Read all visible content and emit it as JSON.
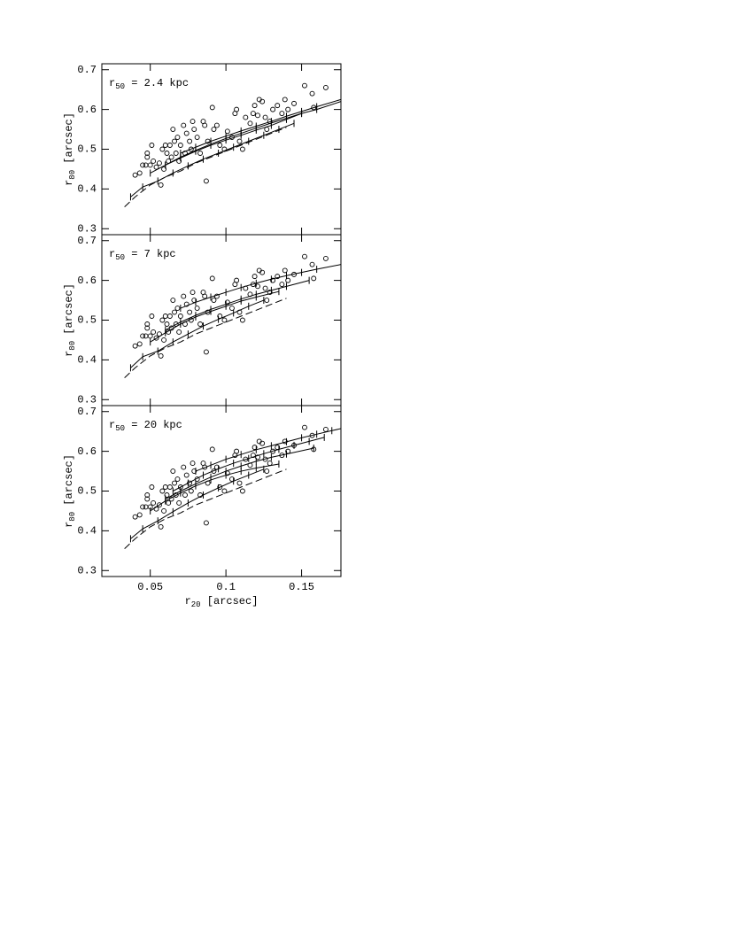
{
  "chart_data": [
    {
      "type": "scatter",
      "annotation": [
        "r",
        "50",
        " = 2.4 kpc"
      ],
      "y_label": [
        "r",
        "80",
        " [arcsec]"
      ],
      "xlim": [
        0.018,
        0.176
      ],
      "ylim": [
        0.285,
        0.715
      ],
      "xticks": [
        0.05,
        0.1,
        0.15
      ],
      "yticks": [
        0.3,
        0.4,
        0.5,
        0.6,
        0.7
      ],
      "show_xtick_labels": false,
      "series": [
        {
          "marker": "circle",
          "color": "#000000",
          "x": [
            0.04,
            0.043,
            0.045,
            0.047,
            0.048,
            0.048,
            0.05,
            0.051,
            0.052,
            0.054,
            0.056,
            0.057,
            0.058,
            0.059,
            0.06,
            0.061,
            0.062,
            0.063,
            0.064,
            0.065,
            0.066,
            0.067,
            0.068,
            0.069,
            0.07,
            0.072,
            0.073,
            0.074,
            0.076,
            0.077,
            0.078,
            0.079,
            0.081,
            0.083,
            0.085,
            0.086,
            0.087,
            0.088,
            0.091,
            0.092,
            0.094,
            0.096,
            0.099,
            0.101,
            0.104,
            0.106,
            0.107,
            0.109,
            0.111,
            0.113,
            0.116,
            0.118,
            0.119,
            0.121,
            0.122,
            0.124,
            0.126,
            0.127,
            0.129,
            0.131,
            0.134,
            0.137,
            0.139,
            0.141,
            0.145,
            0.152,
            0.157,
            0.158,
            0.166
          ],
          "values": [
            0.435,
            0.44,
            0.46,
            0.46,
            0.48,
            0.49,
            0.46,
            0.51,
            0.47,
            0.455,
            0.465,
            0.41,
            0.5,
            0.45,
            0.51,
            0.49,
            0.47,
            0.51,
            0.48,
            0.55,
            0.52,
            0.49,
            0.53,
            0.47,
            0.51,
            0.56,
            0.49,
            0.54,
            0.52,
            0.5,
            0.57,
            0.55,
            0.53,
            0.49,
            0.57,
            0.56,
            0.42,
            0.52,
            0.605,
            0.55,
            0.56,
            0.51,
            0.5,
            0.545,
            0.53,
            0.59,
            0.6,
            0.52,
            0.5,
            0.58,
            0.565,
            0.59,
            0.61,
            0.585,
            0.625,
            0.62,
            0.58,
            0.55,
            0.57,
            0.6,
            0.61,
            0.59,
            0.625,
            0.6,
            0.615,
            0.66,
            0.64,
            0.605,
            0.655
          ]
        },
        {
          "line": "dashed",
          "color": "#000000",
          "x": [
            0.033,
            0.04,
            0.05,
            0.06,
            0.07,
            0.08,
            0.09,
            0.1,
            0.11,
            0.12,
            0.13,
            0.14
          ],
          "values": [
            0.355,
            0.38,
            0.41,
            0.43,
            0.445,
            0.465,
            0.48,
            0.495,
            0.51,
            0.525,
            0.54,
            0.555
          ]
        },
        {
          "line": "solid",
          "color": "#000000",
          "x": [
            0.037,
            0.045,
            0.055,
            0.065,
            0.075,
            0.085,
            0.095,
            0.105,
            0.115,
            0.125,
            0.135,
            0.145
          ],
          "values": [
            0.38,
            0.405,
            0.42,
            0.44,
            0.458,
            0.475,
            0.49,
            0.505,
            0.52,
            0.535,
            0.55,
            0.565
          ]
        },
        {
          "line": "solid",
          "color": "#000000",
          "x": [
            0.05,
            0.06,
            0.07,
            0.08,
            0.09,
            0.1,
            0.11,
            0.12,
            0.13,
            0.14,
            0.15
          ],
          "values": [
            0.44,
            0.46,
            0.478,
            0.495,
            0.51,
            0.523,
            0.535,
            0.548,
            0.56,
            0.575,
            0.59
          ]
        },
        {
          "line": "solid",
          "color": "#000000",
          "x": [
            0.06,
            0.07,
            0.08,
            0.09,
            0.1,
            0.11,
            0.12,
            0.13,
            0.14,
            0.15,
            0.16,
            0.176
          ],
          "values": [
            0.46,
            0.48,
            0.497,
            0.513,
            0.527,
            0.54,
            0.553,
            0.566,
            0.578,
            0.59,
            0.6,
            0.62
          ]
        },
        {
          "line": "solid",
          "color": "#000000",
          "x": [
            0.07,
            0.08,
            0.09,
            0.1,
            0.11,
            0.12,
            0.13,
            0.14,
            0.15,
            0.16,
            0.176
          ],
          "values": [
            0.49,
            0.505,
            0.52,
            0.533,
            0.546,
            0.558,
            0.57,
            0.583,
            0.595,
            0.607,
            0.625
          ]
        }
      ]
    },
    {
      "type": "scatter",
      "annotation": [
        "r",
        "50",
        " = 7 kpc"
      ],
      "y_label": [
        "r",
        "80",
        " [arcsec]"
      ],
      "xlim": [
        0.018,
        0.176
      ],
      "ylim": [
        0.285,
        0.715
      ],
      "xticks": [
        0.05,
        0.1,
        0.15
      ],
      "yticks": [
        0.3,
        0.4,
        0.5,
        0.6,
        0.7
      ],
      "show_xtick_labels": false,
      "series": [
        {
          "marker": "circle",
          "color": "#000000",
          "x": [
            0.04,
            0.043,
            0.045,
            0.047,
            0.048,
            0.048,
            0.05,
            0.051,
            0.052,
            0.054,
            0.056,
            0.057,
            0.058,
            0.059,
            0.06,
            0.061,
            0.062,
            0.063,
            0.064,
            0.065,
            0.066,
            0.067,
            0.068,
            0.069,
            0.07,
            0.072,
            0.073,
            0.074,
            0.076,
            0.077,
            0.078,
            0.079,
            0.081,
            0.083,
            0.085,
            0.086,
            0.087,
            0.088,
            0.091,
            0.092,
            0.094,
            0.096,
            0.099,
            0.101,
            0.104,
            0.106,
            0.107,
            0.109,
            0.111,
            0.113,
            0.116,
            0.118,
            0.119,
            0.121,
            0.122,
            0.124,
            0.126,
            0.127,
            0.129,
            0.131,
            0.134,
            0.137,
            0.139,
            0.141,
            0.145,
            0.152,
            0.157,
            0.158,
            0.166
          ],
          "values": [
            0.435,
            0.44,
            0.46,
            0.46,
            0.48,
            0.49,
            0.46,
            0.51,
            0.47,
            0.455,
            0.465,
            0.41,
            0.5,
            0.45,
            0.51,
            0.49,
            0.47,
            0.51,
            0.48,
            0.55,
            0.52,
            0.49,
            0.53,
            0.47,
            0.51,
            0.56,
            0.49,
            0.54,
            0.52,
            0.5,
            0.57,
            0.55,
            0.53,
            0.49,
            0.57,
            0.56,
            0.42,
            0.52,
            0.605,
            0.55,
            0.56,
            0.51,
            0.5,
            0.545,
            0.53,
            0.59,
            0.6,
            0.52,
            0.5,
            0.58,
            0.565,
            0.59,
            0.61,
            0.585,
            0.625,
            0.62,
            0.58,
            0.55,
            0.57,
            0.6,
            0.61,
            0.59,
            0.625,
            0.6,
            0.615,
            0.66,
            0.64,
            0.605,
            0.655
          ]
        },
        {
          "line": "dashed",
          "color": "#000000",
          "x": [
            0.033,
            0.04,
            0.05,
            0.06,
            0.07,
            0.08,
            0.09,
            0.1,
            0.11,
            0.12,
            0.13,
            0.14
          ],
          "values": [
            0.355,
            0.38,
            0.41,
            0.43,
            0.445,
            0.465,
            0.48,
            0.495,
            0.51,
            0.525,
            0.54,
            0.555
          ]
        },
        {
          "line": "solid",
          "color": "#000000",
          "x": [
            0.037,
            0.045,
            0.055,
            0.065,
            0.075,
            0.085,
            0.095,
            0.105,
            0.115,
            0.125
          ],
          "values": [
            0.38,
            0.408,
            0.422,
            0.445,
            0.465,
            0.485,
            0.502,
            0.518,
            0.535,
            0.55
          ]
        },
        {
          "line": "solid",
          "color": "#000000",
          "x": [
            0.05,
            0.06,
            0.07,
            0.08,
            0.09,
            0.1,
            0.11,
            0.12,
            0.135
          ],
          "values": [
            0.445,
            0.468,
            0.49,
            0.508,
            0.522,
            0.535,
            0.548,
            0.558,
            0.572
          ]
        },
        {
          "line": "solid",
          "color": "#000000",
          "x": [
            0.06,
            0.07,
            0.08,
            0.09,
            0.1,
            0.11,
            0.12,
            0.13,
            0.14,
            0.155
          ],
          "values": [
            0.475,
            0.495,
            0.512,
            0.527,
            0.54,
            0.553,
            0.565,
            0.575,
            0.585,
            0.6
          ]
        },
        {
          "line": "solid",
          "color": "#000000",
          "x": [
            0.07,
            0.08,
            0.09,
            0.1,
            0.11,
            0.12,
            0.13,
            0.14,
            0.15,
            0.16,
            0.176
          ],
          "values": [
            0.53,
            0.545,
            0.558,
            0.57,
            0.582,
            0.593,
            0.603,
            0.612,
            0.62,
            0.628,
            0.64
          ]
        }
      ]
    },
    {
      "type": "scatter",
      "annotation": [
        "r",
        "50",
        " = 20 kpc"
      ],
      "y_label": [
        "r",
        "80",
        " [arcsec]"
      ],
      "x_label": [
        "r",
        "20",
        " [arcsec]"
      ],
      "xlim": [
        0.018,
        0.176
      ],
      "ylim": [
        0.285,
        0.715
      ],
      "xticks": [
        0.05,
        0.1,
        0.15
      ],
      "yticks": [
        0.3,
        0.4,
        0.5,
        0.6,
        0.7
      ],
      "show_xtick_labels": true,
      "series": [
        {
          "marker": "circle",
          "color": "#000000",
          "x": [
            0.04,
            0.043,
            0.045,
            0.047,
            0.048,
            0.048,
            0.05,
            0.051,
            0.052,
            0.054,
            0.056,
            0.057,
            0.058,
            0.059,
            0.06,
            0.061,
            0.062,
            0.063,
            0.064,
            0.065,
            0.066,
            0.067,
            0.068,
            0.069,
            0.07,
            0.072,
            0.073,
            0.074,
            0.076,
            0.077,
            0.078,
            0.079,
            0.081,
            0.083,
            0.085,
            0.086,
            0.087,
            0.088,
            0.091,
            0.092,
            0.094,
            0.096,
            0.099,
            0.101,
            0.104,
            0.106,
            0.107,
            0.109,
            0.111,
            0.113,
            0.116,
            0.118,
            0.119,
            0.121,
            0.122,
            0.124,
            0.126,
            0.127,
            0.129,
            0.131,
            0.134,
            0.137,
            0.139,
            0.141,
            0.145,
            0.152,
            0.157,
            0.158,
            0.166
          ],
          "values": [
            0.435,
            0.44,
            0.46,
            0.46,
            0.48,
            0.49,
            0.46,
            0.51,
            0.47,
            0.455,
            0.465,
            0.41,
            0.5,
            0.45,
            0.51,
            0.49,
            0.47,
            0.51,
            0.48,
            0.55,
            0.52,
            0.49,
            0.53,
            0.47,
            0.51,
            0.56,
            0.49,
            0.54,
            0.52,
            0.5,
            0.57,
            0.55,
            0.53,
            0.49,
            0.57,
            0.56,
            0.42,
            0.52,
            0.605,
            0.55,
            0.56,
            0.51,
            0.5,
            0.545,
            0.53,
            0.59,
            0.6,
            0.52,
            0.5,
            0.58,
            0.565,
            0.59,
            0.61,
            0.585,
            0.625,
            0.62,
            0.58,
            0.55,
            0.57,
            0.6,
            0.61,
            0.59,
            0.625,
            0.6,
            0.615,
            0.66,
            0.64,
            0.605,
            0.655
          ]
        },
        {
          "line": "dashed",
          "color": "#000000",
          "x": [
            0.033,
            0.04,
            0.05,
            0.06,
            0.07,
            0.08,
            0.09,
            0.1,
            0.11,
            0.12,
            0.13,
            0.14
          ],
          "values": [
            0.355,
            0.38,
            0.41,
            0.43,
            0.445,
            0.465,
            0.48,
            0.495,
            0.51,
            0.525,
            0.54,
            0.555
          ]
        },
        {
          "line": "solid",
          "color": "#000000",
          "x": [
            0.037,
            0.045,
            0.055,
            0.065,
            0.075,
            0.085,
            0.095,
            0.105,
            0.115,
            0.125
          ],
          "values": [
            0.38,
            0.405,
            0.425,
            0.448,
            0.47,
            0.49,
            0.508,
            0.525,
            0.54,
            0.555
          ]
        },
        {
          "line": "solid",
          "color": "#000000",
          "x": [
            0.05,
            0.06,
            0.07,
            0.08,
            0.09,
            0.1,
            0.11,
            0.12,
            0.135
          ],
          "values": [
            0.45,
            0.475,
            0.495,
            0.513,
            0.528,
            0.54,
            0.55,
            0.558,
            0.568
          ]
        },
        {
          "line": "solid",
          "color": "#000000",
          "x": [
            0.06,
            0.07,
            0.08,
            0.09,
            0.1,
            0.11,
            0.12,
            0.13,
            0.14,
            0.158
          ],
          "values": [
            0.48,
            0.5,
            0.518,
            0.535,
            0.55,
            0.563,
            0.575,
            0.585,
            0.593,
            0.608
          ]
        },
        {
          "line": "solid",
          "color": "#000000",
          "x": [
            0.065,
            0.075,
            0.085,
            0.095,
            0.105,
            0.115,
            0.125,
            0.135,
            0.145,
            0.155,
            0.165
          ],
          "values": [
            0.5,
            0.52,
            0.54,
            0.556,
            0.57,
            0.582,
            0.594,
            0.605,
            0.615,
            0.625,
            0.635
          ]
        },
        {
          "line": "solid",
          "color": "#000000",
          "x": [
            0.08,
            0.09,
            0.1,
            0.11,
            0.12,
            0.13,
            0.14,
            0.15,
            0.16,
            0.17,
            0.176
          ],
          "values": [
            0.55,
            0.565,
            0.58,
            0.592,
            0.604,
            0.614,
            0.624,
            0.634,
            0.643,
            0.652,
            0.657
          ]
        }
      ]
    }
  ]
}
